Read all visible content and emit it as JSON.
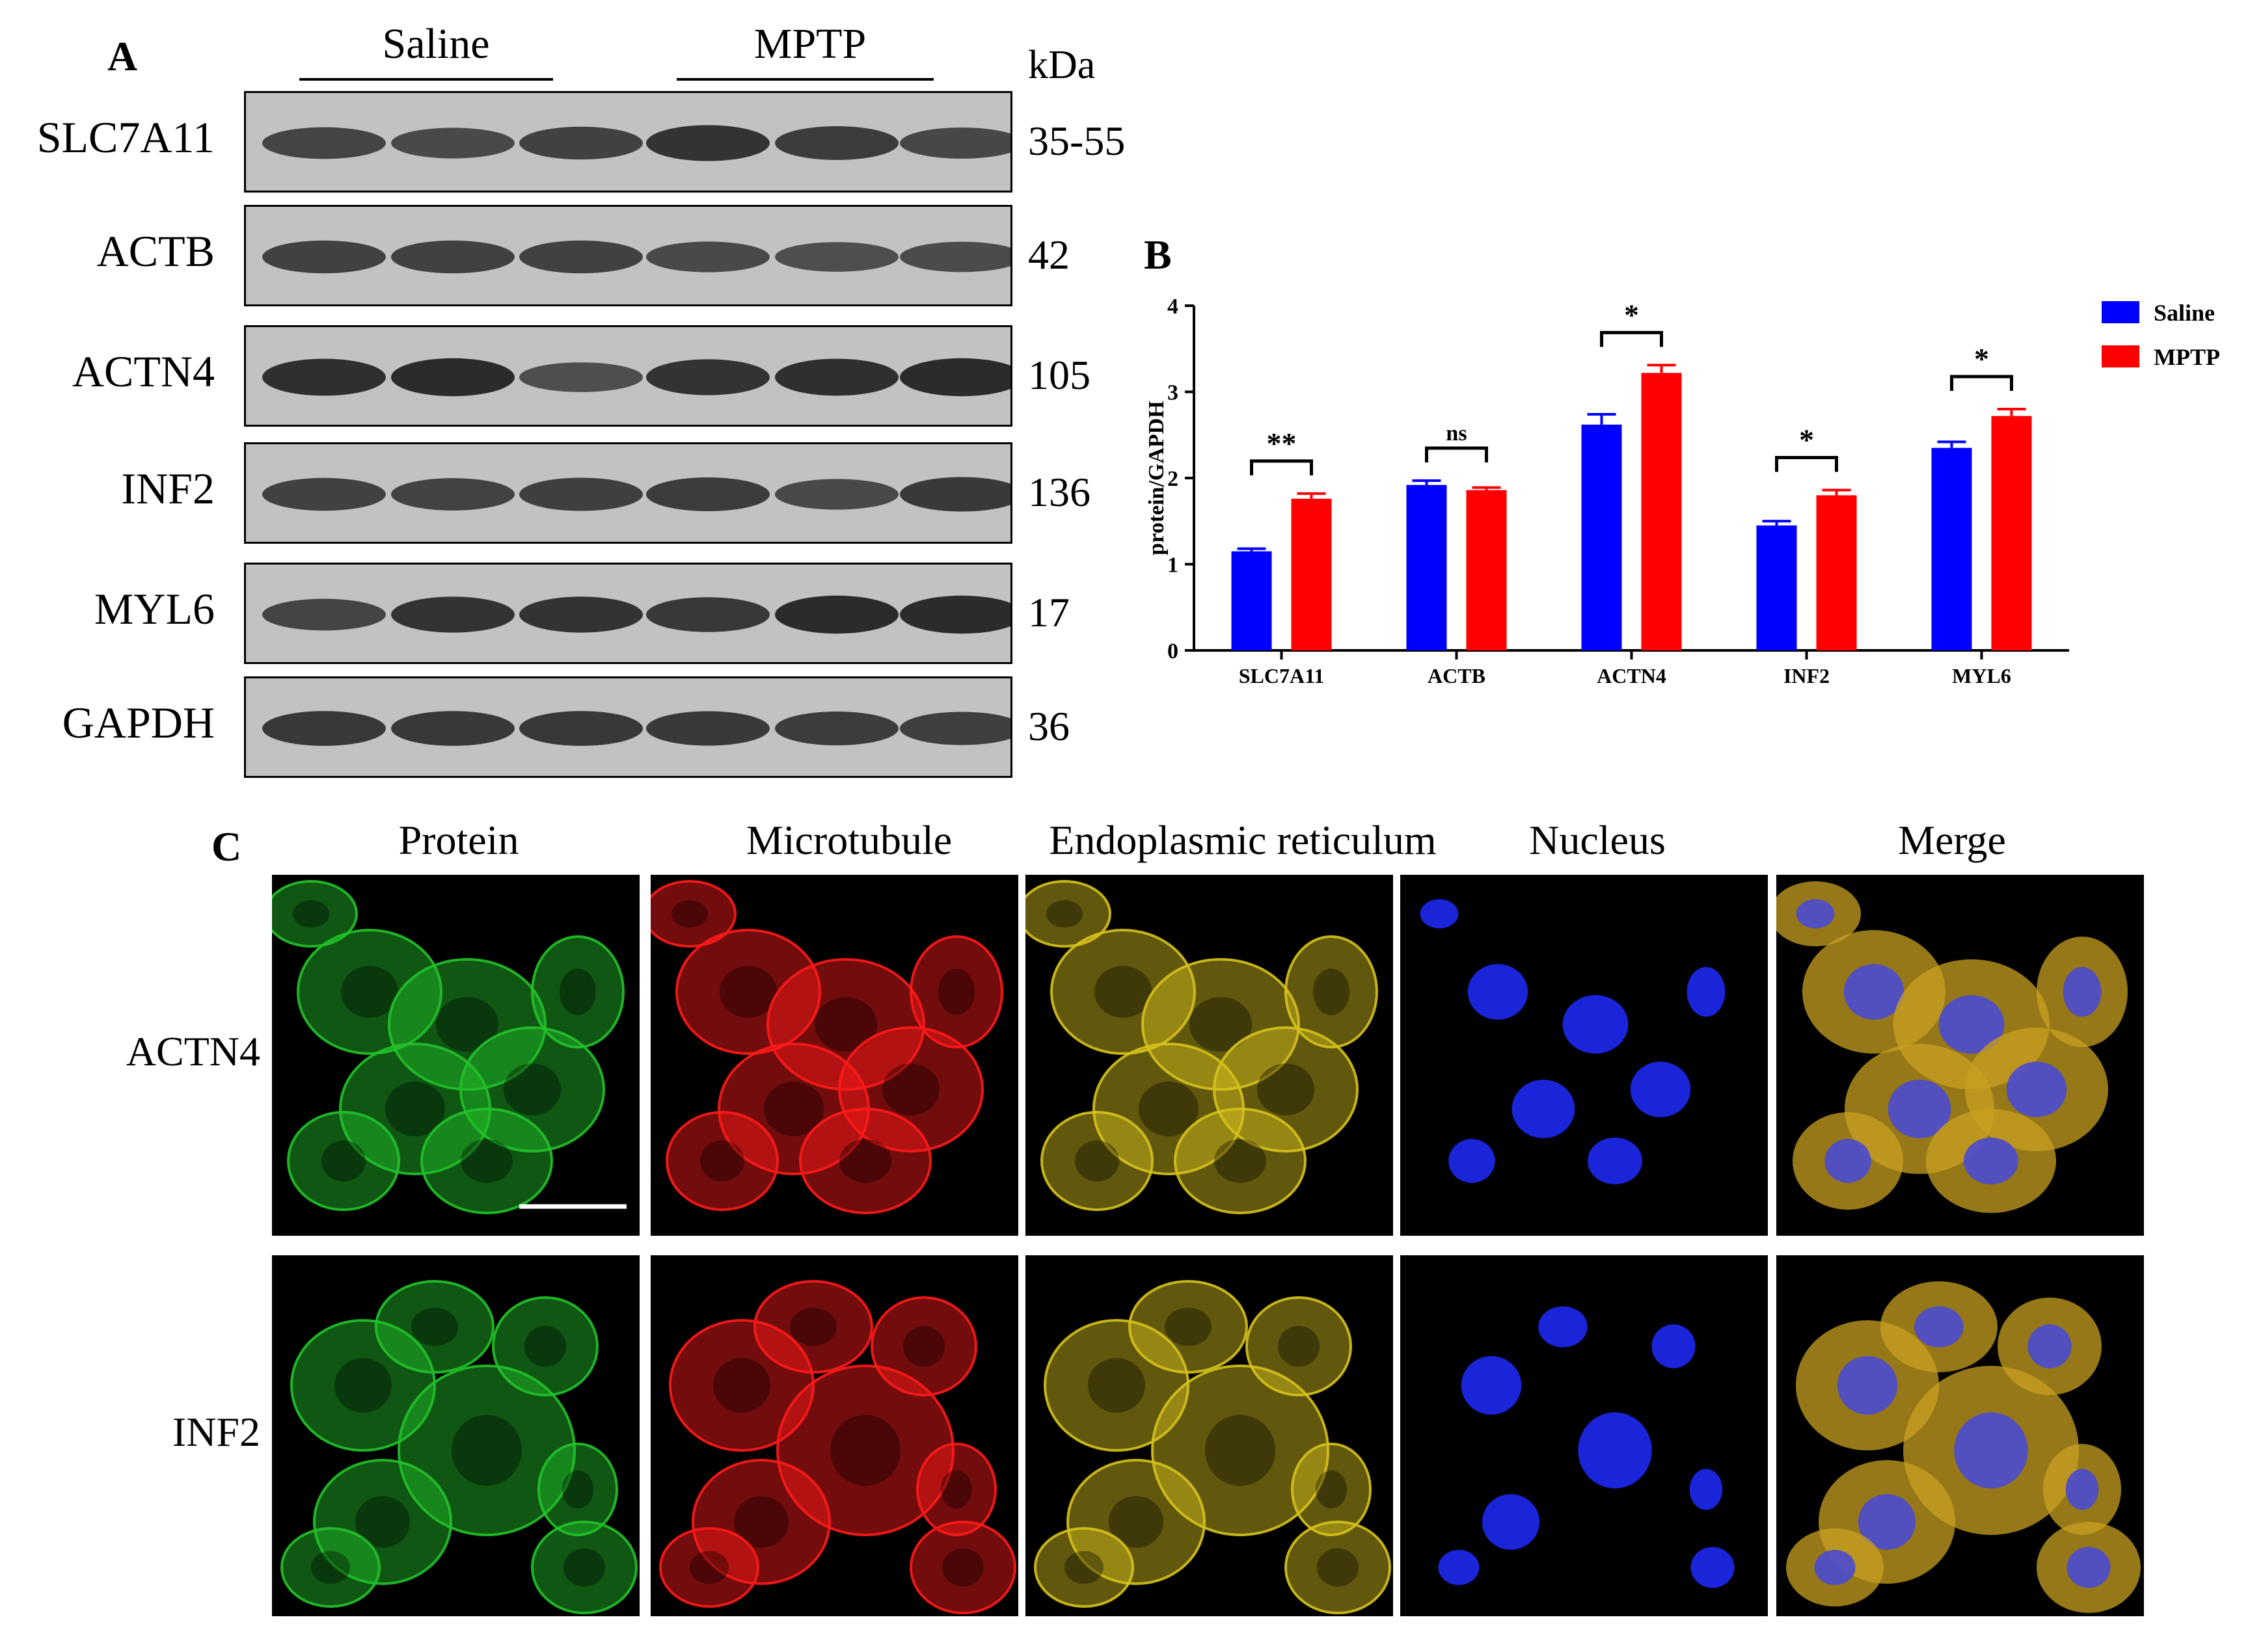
{
  "panelA": {
    "letter": "A",
    "groups": [
      "Saline",
      "MPTP"
    ],
    "kda_label": "kDa",
    "blots": [
      {
        "protein": "SLC7A11",
        "mw": "35-55",
        "band_intensity": [
          0.65,
          0.6,
          0.7,
          0.85,
          0.75,
          0.62
        ]
      },
      {
        "protein": "ACTB",
        "mw": "42",
        "band_intensity": [
          0.7,
          0.7,
          0.7,
          0.6,
          0.55,
          0.58
        ]
      },
      {
        "protein": "ACTN4",
        "mw": "105",
        "band_intensity": [
          0.9,
          0.95,
          0.55,
          0.85,
          0.9,
          0.95
        ]
      },
      {
        "protein": "INF2",
        "mw": "136",
        "band_intensity": [
          0.7,
          0.68,
          0.72,
          0.75,
          0.6,
          0.78
        ]
      },
      {
        "protein": "MYL6",
        "mw": "17",
        "band_intensity": [
          0.65,
          0.85,
          0.85,
          0.8,
          0.95,
          0.95
        ]
      },
      {
        "protein": "GAPDH",
        "mw": "36",
        "band_intensity": [
          0.8,
          0.8,
          0.8,
          0.78,
          0.75,
          0.72
        ]
      }
    ]
  },
  "panelB": {
    "letter": "B",
    "chart_data": {
      "type": "bar",
      "categories": [
        "SLC7A11",
        "ACTB",
        "ACTN4",
        "INF2",
        "MYL6"
      ],
      "series": [
        {
          "name": "Saline",
          "color": "#0000ff",
          "values": [
            1.15,
            1.92,
            2.62,
            1.45,
            2.35
          ],
          "errors": [
            0.03,
            0.05,
            0.12,
            0.05,
            0.07
          ]
        },
        {
          "name": "MPTP",
          "color": "#ff0000",
          "values": [
            1.76,
            1.86,
            3.22,
            1.8,
            2.72
          ],
          "errors": [
            0.06,
            0.03,
            0.09,
            0.06,
            0.08
          ]
        }
      ],
      "significance": [
        "**",
        "ns",
        "*",
        "*",
        "*"
      ],
      "ylabel": "protein/GAPDH",
      "ylim": [
        0,
        4
      ],
      "yticks": [
        "0",
        "1",
        "2",
        "3",
        "4"
      ],
      "legend": "top-right"
    }
  },
  "panelC": {
    "letter": "C",
    "columns": [
      {
        "label": "Protein",
        "color": "#22c22a"
      },
      {
        "label": "Microtubule",
        "color": "#ff1a1a"
      },
      {
        "label": "Endoplasmic reticulum",
        "color": "#d6c21c"
      },
      {
        "label": "Nucleus",
        "color": "#1f2cff"
      },
      {
        "label": "Merge",
        "color": "#d08a2a"
      }
    ],
    "rows": [
      "ACTN4",
      "INF2"
    ]
  }
}
